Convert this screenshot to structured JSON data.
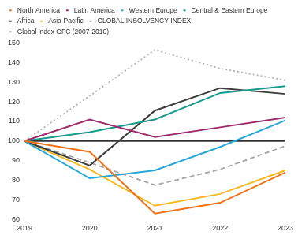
{
  "chart_data": {
    "type": "line",
    "categories": [
      "2019",
      "2020",
      "2021",
      "2022",
      "2023"
    ],
    "series": [
      {
        "name": "North America",
        "color": "#ee7219",
        "line_style": "solid",
        "values": [
          100,
          94.5,
          63,
          68.5,
          84
        ]
      },
      {
        "name": "Latin America",
        "color": "#9c2c6c",
        "line_style": "solid",
        "values": [
          100,
          111,
          102,
          107,
          112
        ]
      },
      {
        "name": "Western Europe",
        "color": "#2aa7d6",
        "line_style": "solid",
        "values": [
          100,
          81,
          85,
          97,
          110.5
        ]
      },
      {
        "name": "Central & Eastern Europe",
        "color": "#18998a",
        "line_style": "solid",
        "values": [
          100,
          104.5,
          111,
          124.5,
          128
        ]
      },
      {
        "name": "Africa",
        "color": "#3c3c3c",
        "line_style": "solid",
        "values": [
          100,
          87.5,
          115.5,
          127,
          124
        ]
      },
      {
        "name": "Asia-Pacific",
        "color": "#f5b921",
        "line_style": "solid",
        "values": [
          100,
          85.5,
          67,
          73,
          85
        ]
      },
      {
        "name": "GLOBAL INSOLVENCY INDEX",
        "color": "#a6a6a6",
        "line_style": "dashed",
        "values": [
          100,
          89,
          77.5,
          85.5,
          97.5
        ]
      },
      {
        "name": "Global index GFC (2007-2010)",
        "color": "#b3b3b3",
        "line_style": "dotted",
        "values": [
          100,
          123,
          146.5,
          137,
          131
        ]
      },
      {
        "color": "#333333",
        "line_style": "solid",
        "values": [
          100,
          100,
          100,
          100,
          100
        ]
      }
    ],
    "ylim": [
      60,
      150
    ],
    "yticks": [
      60,
      70,
      80,
      90,
      100,
      110,
      120,
      130,
      140,
      150
    ],
    "grid": false,
    "legend": "top"
  }
}
